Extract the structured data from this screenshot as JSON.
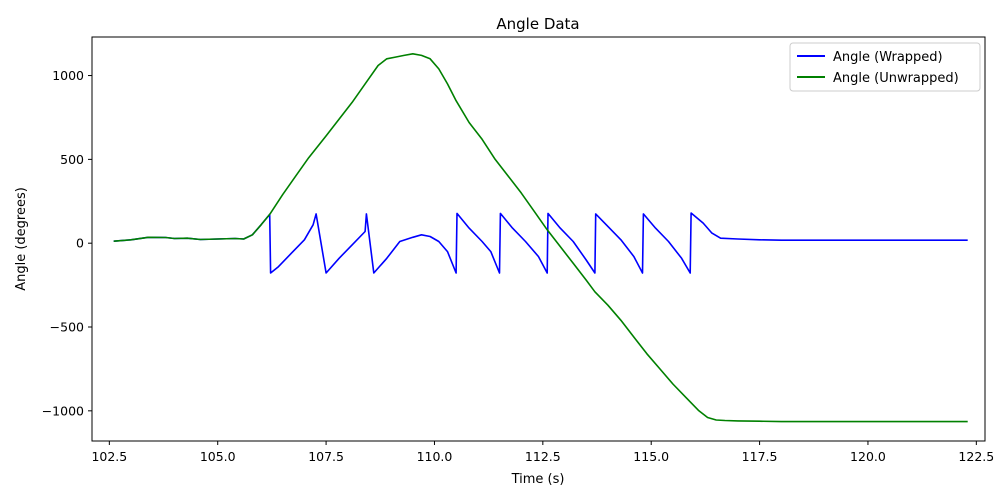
{
  "chart_data": {
    "type": "line",
    "title": "Angle Data",
    "xlabel": "Time (s)",
    "ylabel": "Angle (degrees)",
    "xlim": [
      102.1,
      122.7
    ],
    "ylim": [
      -1180,
      1230
    ],
    "xticks": [
      102.5,
      105.0,
      107.5,
      110.0,
      112.5,
      115.0,
      117.5,
      120.0,
      122.5
    ],
    "xtick_labels": [
      "102.5",
      "105.0",
      "107.5",
      "110.0",
      "112.5",
      "115.0",
      "117.5",
      "120.0",
      "122.5"
    ],
    "yticks": [
      -1000,
      -500,
      0,
      500,
      1000
    ],
    "ytick_labels": [
      "−1000",
      "−500",
      "0",
      "500",
      "1000"
    ],
    "grid": false,
    "legend_position": "top-right",
    "series": [
      {
        "name": "Angle (Wrapped)",
        "color": "#0000ff",
        "x": [
          102.6,
          103.0,
          103.4,
          103.8,
          104.0,
          104.3,
          104.6,
          105.0,
          105.4,
          105.6,
          105.8,
          106.0,
          106.2,
          106.22,
          106.4,
          106.7,
          107.0,
          107.2,
          107.27,
          107.5,
          107.8,
          108.1,
          108.4,
          108.43,
          108.6,
          108.9,
          109.2,
          109.5,
          109.7,
          109.9,
          110.1,
          110.3,
          110.5,
          110.52,
          110.8,
          111.1,
          111.3,
          111.5,
          111.52,
          111.8,
          112.1,
          112.4,
          112.6,
          112.62,
          112.9,
          113.2,
          113.5,
          113.7,
          113.72,
          114.0,
          114.3,
          114.6,
          114.8,
          114.82,
          115.1,
          115.4,
          115.7,
          115.9,
          115.92,
          116.2,
          116.4,
          116.6,
          117.0,
          117.5,
          118.0,
          119.0,
          120.0,
          121.0,
          122.3
        ],
        "y": [
          12,
          20,
          35,
          34,
          28,
          30,
          22,
          25,
          28,
          25,
          50,
          110,
          172,
          -178,
          -140,
          -60,
          20,
          110,
          175,
          -178,
          -90,
          -10,
          70,
          175,
          -178,
          -90,
          10,
          35,
          50,
          40,
          10,
          -50,
          -178,
          178,
          90,
          10,
          -50,
          -178,
          178,
          90,
          10,
          -80,
          -178,
          178,
          90,
          10,
          -100,
          -178,
          175,
          100,
          20,
          -80,
          -178,
          175,
          90,
          10,
          -90,
          -178,
          180,
          120,
          60,
          30,
          25,
          20,
          18,
          18,
          18,
          18,
          18
        ]
      },
      {
        "name": "Angle (Unwrapped)",
        "color": "#008000",
        "x": [
          102.6,
          103.0,
          103.4,
          103.8,
          104.0,
          104.3,
          104.6,
          105.0,
          105.4,
          105.6,
          105.8,
          106.0,
          106.2,
          106.5,
          106.8,
          107.1,
          107.5,
          107.8,
          108.1,
          108.4,
          108.7,
          108.9,
          109.1,
          109.3,
          109.5,
          109.7,
          109.9,
          110.1,
          110.3,
          110.5,
          110.8,
          111.1,
          111.4,
          111.7,
          112.0,
          112.3,
          112.6,
          112.9,
          113.2,
          113.5,
          113.7,
          114.0,
          114.3,
          114.6,
          114.9,
          115.2,
          115.5,
          115.8,
          116.1,
          116.3,
          116.5,
          116.7,
          117.0,
          117.5,
          118.0,
          119.0,
          120.0,
          121.0,
          122.3
        ],
        "y": [
          12,
          20,
          35,
          34,
          28,
          30,
          22,
          25,
          28,
          25,
          50,
          110,
          172,
          290,
          400,
          510,
          640,
          740,
          840,
          950,
          1060,
          1100,
          1110,
          1120,
          1130,
          1120,
          1100,
          1040,
          950,
          850,
          720,
          620,
          500,
          400,
          300,
          190,
          80,
          -20,
          -120,
          -220,
          -290,
          -370,
          -460,
          -560,
          -660,
          -750,
          -840,
          -920,
          -1000,
          -1040,
          -1055,
          -1058,
          -1060,
          -1062,
          -1064,
          -1064,
          -1064,
          -1064,
          -1064
        ]
      }
    ]
  }
}
